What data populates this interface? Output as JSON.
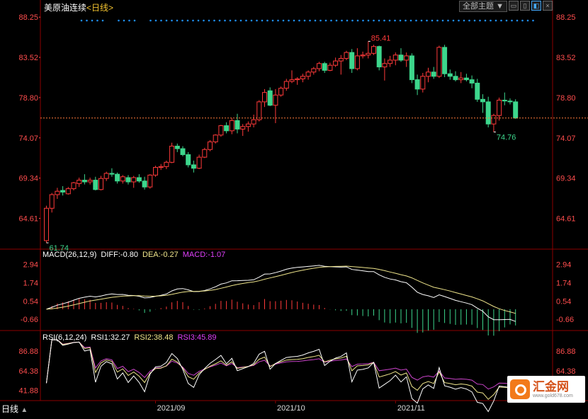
{
  "header": {
    "instrument": "美原油连续",
    "period_label": "<日线>",
    "theme_select": "全部主题"
  },
  "toolbar_icons": [
    "window-icon",
    "chart-icon",
    "toggle-icon",
    "close-icon"
  ],
  "bottom_label": "日线",
  "price_axis": {
    "ticks": [
      88.25,
      83.52,
      78.8,
      74.07,
      69.34,
      64.61
    ],
    "ylim": [
      61.0,
      88.6
    ]
  },
  "price_annotations": {
    "high": "85.41",
    "low": "61.74",
    "recent_low": "74.76"
  },
  "macd_header": {
    "name": "MACD(26,12,9)",
    "diff": "DIFF:-0.80",
    "dea": "DEA:-0.27",
    "macd": "MACD:-1.07"
  },
  "macd_axis": {
    "ticks": [
      "2.94",
      "1.74",
      "0.54",
      "-0.66"
    ]
  },
  "rsi_header": {
    "name": "RSI(6,12,24)",
    "rsi1": "RSI1:32.27",
    "rsi2": "RSI2:38.48",
    "rsi3": "RSI3:45.89"
  },
  "rsi_axis": {
    "ticks": [
      "86.88",
      "64.38",
      "41.88"
    ]
  },
  "x_labels": [
    "2021/09",
    "2021/10",
    "2021/11"
  ],
  "colors": {
    "up": "#ff3a3a",
    "down": "#3dd68c",
    "dea": "#f0e68c",
    "macd": "#e040fb",
    "rsi3": "#cc44cc",
    "axis_text": "#ff4d4d",
    "grid": "#8b0000",
    "dots": "#1e90ff"
  },
  "chart_data": {
    "type": "candlestick",
    "title": "美原油连续",
    "candles": [
      {
        "o": 62.0,
        "h": 66.1,
        "l": 61.74,
        "c": 65.8
      },
      {
        "o": 65.8,
        "h": 67.6,
        "l": 65.3,
        "c": 67.4
      },
      {
        "o": 67.4,
        "h": 68.2,
        "l": 66.9,
        "c": 67.8
      },
      {
        "o": 67.9,
        "h": 68.4,
        "l": 67.3,
        "c": 67.7
      },
      {
        "o": 67.5,
        "h": 68.3,
        "l": 67.4,
        "c": 68.1
      },
      {
        "o": 68.1,
        "h": 68.9,
        "l": 67.9,
        "c": 68.8
      },
      {
        "o": 68.7,
        "h": 69.4,
        "l": 68.3,
        "c": 69.1
      },
      {
        "o": 69.1,
        "h": 69.8,
        "l": 68.6,
        "c": 68.9
      },
      {
        "o": 68.9,
        "h": 69.4,
        "l": 68.6,
        "c": 69.1
      },
      {
        "o": 69.1,
        "h": 69.5,
        "l": 67.9,
        "c": 68.0
      },
      {
        "o": 68.0,
        "h": 69.6,
        "l": 67.9,
        "c": 69.3
      },
      {
        "o": 69.3,
        "h": 70.1,
        "l": 69.0,
        "c": 69.9
      },
      {
        "o": 69.9,
        "h": 70.5,
        "l": 69.5,
        "c": 69.8
      },
      {
        "o": 69.8,
        "h": 70.0,
        "l": 68.7,
        "c": 69.0
      },
      {
        "o": 69.0,
        "h": 69.7,
        "l": 68.7,
        "c": 69.5
      },
      {
        "o": 69.4,
        "h": 69.7,
        "l": 68.6,
        "c": 68.9
      },
      {
        "o": 68.9,
        "h": 69.6,
        "l": 68.2,
        "c": 69.4
      },
      {
        "o": 69.4,
        "h": 69.8,
        "l": 68.8,
        "c": 69.0
      },
      {
        "o": 69.0,
        "h": 69.5,
        "l": 68.0,
        "c": 68.3
      },
      {
        "o": 68.3,
        "h": 69.8,
        "l": 68.1,
        "c": 69.7
      },
      {
        "o": 69.7,
        "h": 70.8,
        "l": 69.5,
        "c": 70.6
      },
      {
        "o": 70.6,
        "h": 71.0,
        "l": 70.3,
        "c": 70.7
      },
      {
        "o": 70.7,
        "h": 71.4,
        "l": 70.4,
        "c": 71.2
      },
      {
        "o": 71.2,
        "h": 73.5,
        "l": 71.1,
        "c": 73.1
      },
      {
        "o": 73.1,
        "h": 73.4,
        "l": 72.4,
        "c": 72.8
      },
      {
        "o": 72.8,
        "h": 73.1,
        "l": 71.9,
        "c": 72.1
      },
      {
        "o": 72.1,
        "h": 72.4,
        "l": 70.6,
        "c": 70.9
      },
      {
        "o": 70.9,
        "h": 71.4,
        "l": 70.0,
        "c": 70.5
      },
      {
        "o": 70.5,
        "h": 72.1,
        "l": 70.4,
        "c": 71.8
      },
      {
        "o": 71.8,
        "h": 72.9,
        "l": 71.7,
        "c": 72.7
      },
      {
        "o": 72.7,
        "h": 73.8,
        "l": 72.5,
        "c": 73.6
      },
      {
        "o": 73.6,
        "h": 74.5,
        "l": 73.4,
        "c": 74.4
      },
      {
        "o": 74.4,
        "h": 75.6,
        "l": 74.2,
        "c": 75.5
      },
      {
        "o": 75.5,
        "h": 75.9,
        "l": 74.6,
        "c": 74.9
      },
      {
        "o": 74.9,
        "h": 76.4,
        "l": 74.5,
        "c": 76.1
      },
      {
        "o": 76.1,
        "h": 76.9,
        "l": 74.6,
        "c": 75.1
      },
      {
        "o": 75.1,
        "h": 75.7,
        "l": 74.3,
        "c": 75.4
      },
      {
        "o": 75.4,
        "h": 76.0,
        "l": 74.8,
        "c": 75.7
      },
      {
        "o": 75.7,
        "h": 76.8,
        "l": 75.3,
        "c": 76.2
      },
      {
        "o": 76.2,
        "h": 78.5,
        "l": 76.0,
        "c": 78.3
      },
      {
        "o": 78.3,
        "h": 79.8,
        "l": 77.7,
        "c": 79.4
      },
      {
        "o": 79.6,
        "h": 80.0,
        "l": 77.8,
        "c": 77.9
      },
      {
        "o": 77.9,
        "h": 79.8,
        "l": 75.8,
        "c": 79.1
      },
      {
        "o": 79.1,
        "h": 80.1,
        "l": 78.9,
        "c": 79.9
      },
      {
        "o": 79.9,
        "h": 81.0,
        "l": 79.6,
        "c": 80.7
      },
      {
        "o": 80.7,
        "h": 82.0,
        "l": 80.5,
        "c": 80.9
      },
      {
        "o": 80.9,
        "h": 81.2,
        "l": 80.3,
        "c": 81.0
      },
      {
        "o": 81.0,
        "h": 81.6,
        "l": 80.6,
        "c": 81.3
      },
      {
        "o": 81.3,
        "h": 82.0,
        "l": 80.9,
        "c": 81.8
      },
      {
        "o": 81.8,
        "h": 82.4,
        "l": 81.5,
        "c": 82.2
      },
      {
        "o": 82.2,
        "h": 83.0,
        "l": 81.9,
        "c": 82.8
      },
      {
        "o": 82.8,
        "h": 83.0,
        "l": 81.7,
        "c": 82.0
      },
      {
        "o": 82.0,
        "h": 82.9,
        "l": 81.9,
        "c": 82.6
      },
      {
        "o": 82.6,
        "h": 83.5,
        "l": 82.4,
        "c": 83.1
      },
      {
        "o": 83.1,
        "h": 83.8,
        "l": 81.5,
        "c": 83.4
      },
      {
        "o": 83.4,
        "h": 84.3,
        "l": 83.2,
        "c": 84.1
      },
      {
        "o": 84.1,
        "h": 84.5,
        "l": 81.7,
        "c": 82.2
      },
      {
        "o": 82.2,
        "h": 84.6,
        "l": 82.0,
        "c": 83.7
      },
      {
        "o": 83.7,
        "h": 84.2,
        "l": 83.4,
        "c": 83.8
      },
      {
        "o": 83.8,
        "h": 85.41,
        "l": 83.4,
        "c": 84.0
      },
      {
        "o": 84.0,
        "h": 85.0,
        "l": 83.8,
        "c": 84.8
      },
      {
        "o": 84.8,
        "h": 84.9,
        "l": 82.0,
        "c": 82.4
      },
      {
        "o": 82.4,
        "h": 83.4,
        "l": 80.8,
        "c": 82.8
      },
      {
        "o": 82.8,
        "h": 83.7,
        "l": 82.4,
        "c": 83.2
      },
      {
        "o": 83.2,
        "h": 84.1,
        "l": 82.6,
        "c": 83.8
      },
      {
        "o": 83.8,
        "h": 84.6,
        "l": 83.0,
        "c": 83.2
      },
      {
        "o": 83.2,
        "h": 84.1,
        "l": 82.4,
        "c": 83.7
      },
      {
        "o": 83.7,
        "h": 84.0,
        "l": 80.5,
        "c": 80.9
      },
      {
        "o": 80.9,
        "h": 81.5,
        "l": 79.1,
        "c": 79.8
      },
      {
        "o": 79.8,
        "h": 81.7,
        "l": 79.4,
        "c": 81.3
      },
      {
        "o": 81.3,
        "h": 82.3,
        "l": 80.6,
        "c": 81.8
      },
      {
        "o": 81.8,
        "h": 82.4,
        "l": 81.0,
        "c": 81.3
      },
      {
        "o": 81.3,
        "h": 84.9,
        "l": 81.1,
        "c": 84.7
      },
      {
        "o": 84.7,
        "h": 85.0,
        "l": 81.2,
        "c": 81.6
      },
      {
        "o": 81.6,
        "h": 82.1,
        "l": 80.9,
        "c": 81.3
      },
      {
        "o": 81.3,
        "h": 81.9,
        "l": 80.7,
        "c": 80.9
      },
      {
        "o": 80.9,
        "h": 81.8,
        "l": 80.5,
        "c": 81.1
      },
      {
        "o": 81.1,
        "h": 81.6,
        "l": 80.7,
        "c": 80.9
      },
      {
        "o": 80.9,
        "h": 81.4,
        "l": 79.9,
        "c": 80.5
      },
      {
        "o": 80.5,
        "h": 81.0,
        "l": 78.3,
        "c": 78.6
      },
      {
        "o": 78.6,
        "h": 79.2,
        "l": 77.0,
        "c": 78.3
      },
      {
        "o": 78.3,
        "h": 78.9,
        "l": 75.3,
        "c": 75.7
      },
      {
        "o": 75.7,
        "h": 76.9,
        "l": 74.76,
        "c": 76.7
      },
      {
        "o": 76.7,
        "h": 78.8,
        "l": 76.1,
        "c": 78.5
      },
      {
        "o": 78.5,
        "h": 79.4,
        "l": 77.9,
        "c": 78.4
      },
      {
        "o": 78.4,
        "h": 78.7,
        "l": 78.0,
        "c": 78.3
      },
      {
        "o": 78.3,
        "h": 78.6,
        "l": 76.3,
        "c": 76.4
      }
    ],
    "current_price": 76.4,
    "macd": {
      "diff_end": -0.8,
      "dea_end": -0.27,
      "macd_end": -1.07,
      "ylim": [
        -1.3,
        3.1
      ]
    },
    "rsi": {
      "rsi1_end": 32.27,
      "rsi2_end": 38.48,
      "rsi3_end": 45.89,
      "ylim": [
        30,
        96
      ]
    },
    "x_ticks": [
      {
        "label": "2021/09",
        "index": 20
      },
      {
        "label": "2021/10",
        "index": 42
      },
      {
        "label": "2021/11",
        "index": 64
      }
    ]
  }
}
